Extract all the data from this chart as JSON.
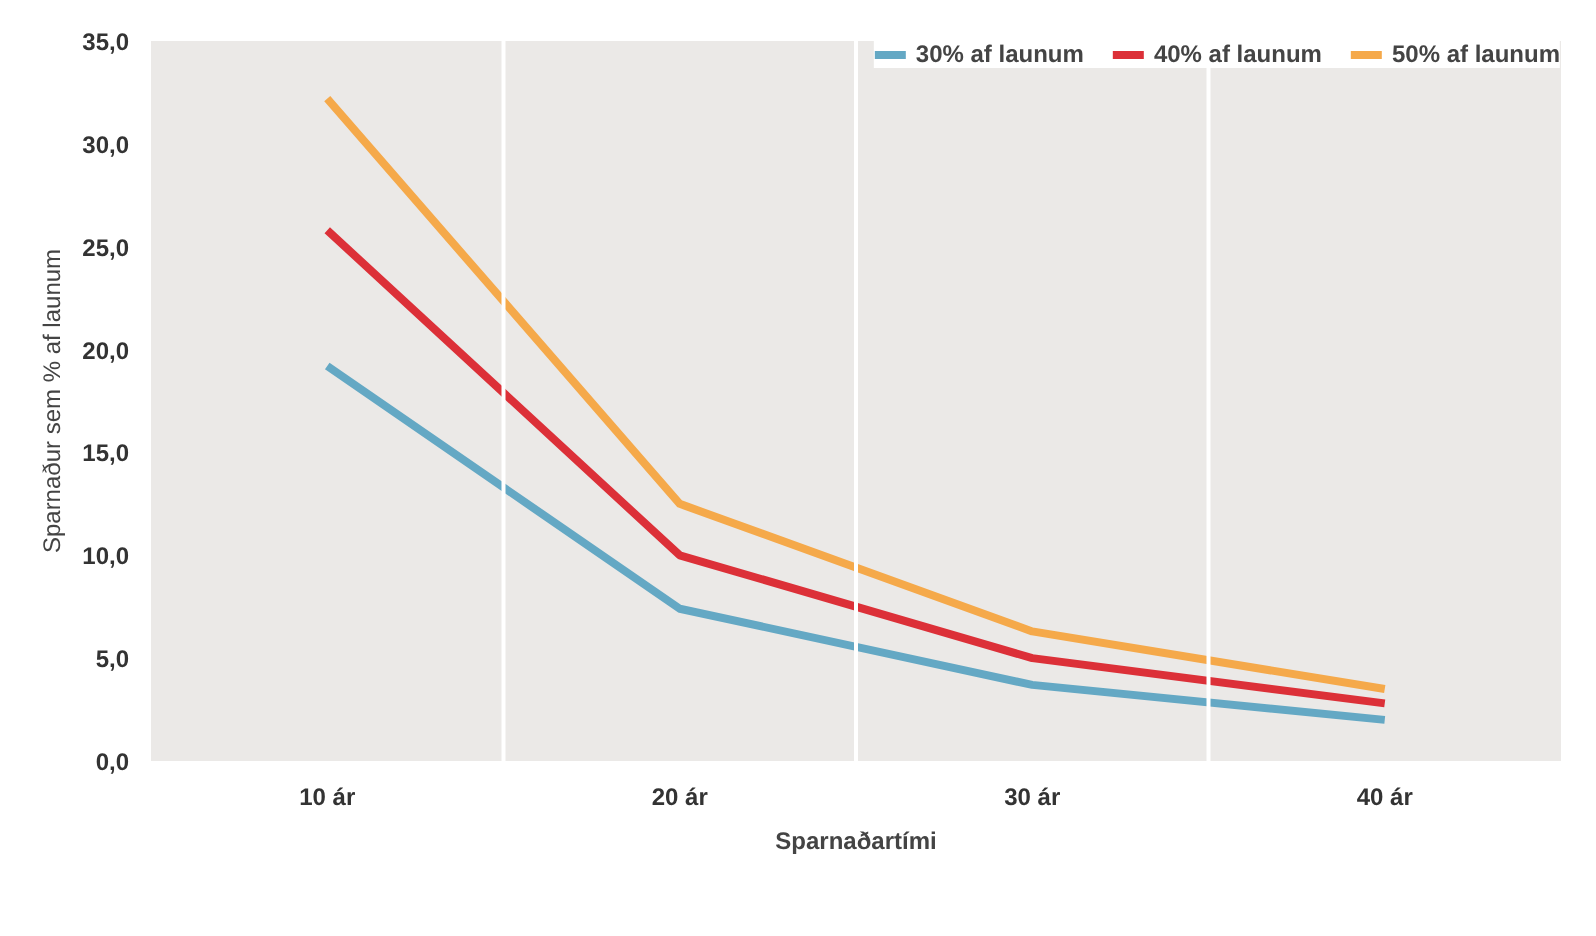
{
  "chart_data": {
    "type": "line",
    "xlabel": "Sparnaðartími",
    "ylabel": "Sparnaður sem % af launum",
    "categories": [
      "10 ár",
      "20 ár",
      "30 ár",
      "40 ár"
    ],
    "series": [
      {
        "name": "30% af launum",
        "color": "#64a8c4",
        "values": [
          19.2,
          7.4,
          3.7,
          2.0
        ]
      },
      {
        "name": "40% af launum",
        "color": "#dc3038",
        "values": [
          25.8,
          10.0,
          5.0,
          2.8
        ]
      },
      {
        "name": "50% af launum",
        "color": "#f5a94a",
        "values": [
          32.2,
          12.5,
          6.3,
          3.5
        ]
      }
    ],
    "ylim": [
      0,
      35
    ],
    "yticks": [
      {
        "value": 0,
        "label": "0,0"
      },
      {
        "value": 5,
        "label": "5,0"
      },
      {
        "value": 10,
        "label": "10,0"
      },
      {
        "value": 15,
        "label": "15,0"
      },
      {
        "value": 20,
        "label": "20,0"
      },
      {
        "value": 25,
        "label": "25,0"
      },
      {
        "value": 30,
        "label": "30,0"
      },
      {
        "value": 35,
        "label": "35,0"
      }
    ],
    "grid": "x",
    "legend": "top right",
    "marker": "none",
    "line_style": "solid"
  }
}
